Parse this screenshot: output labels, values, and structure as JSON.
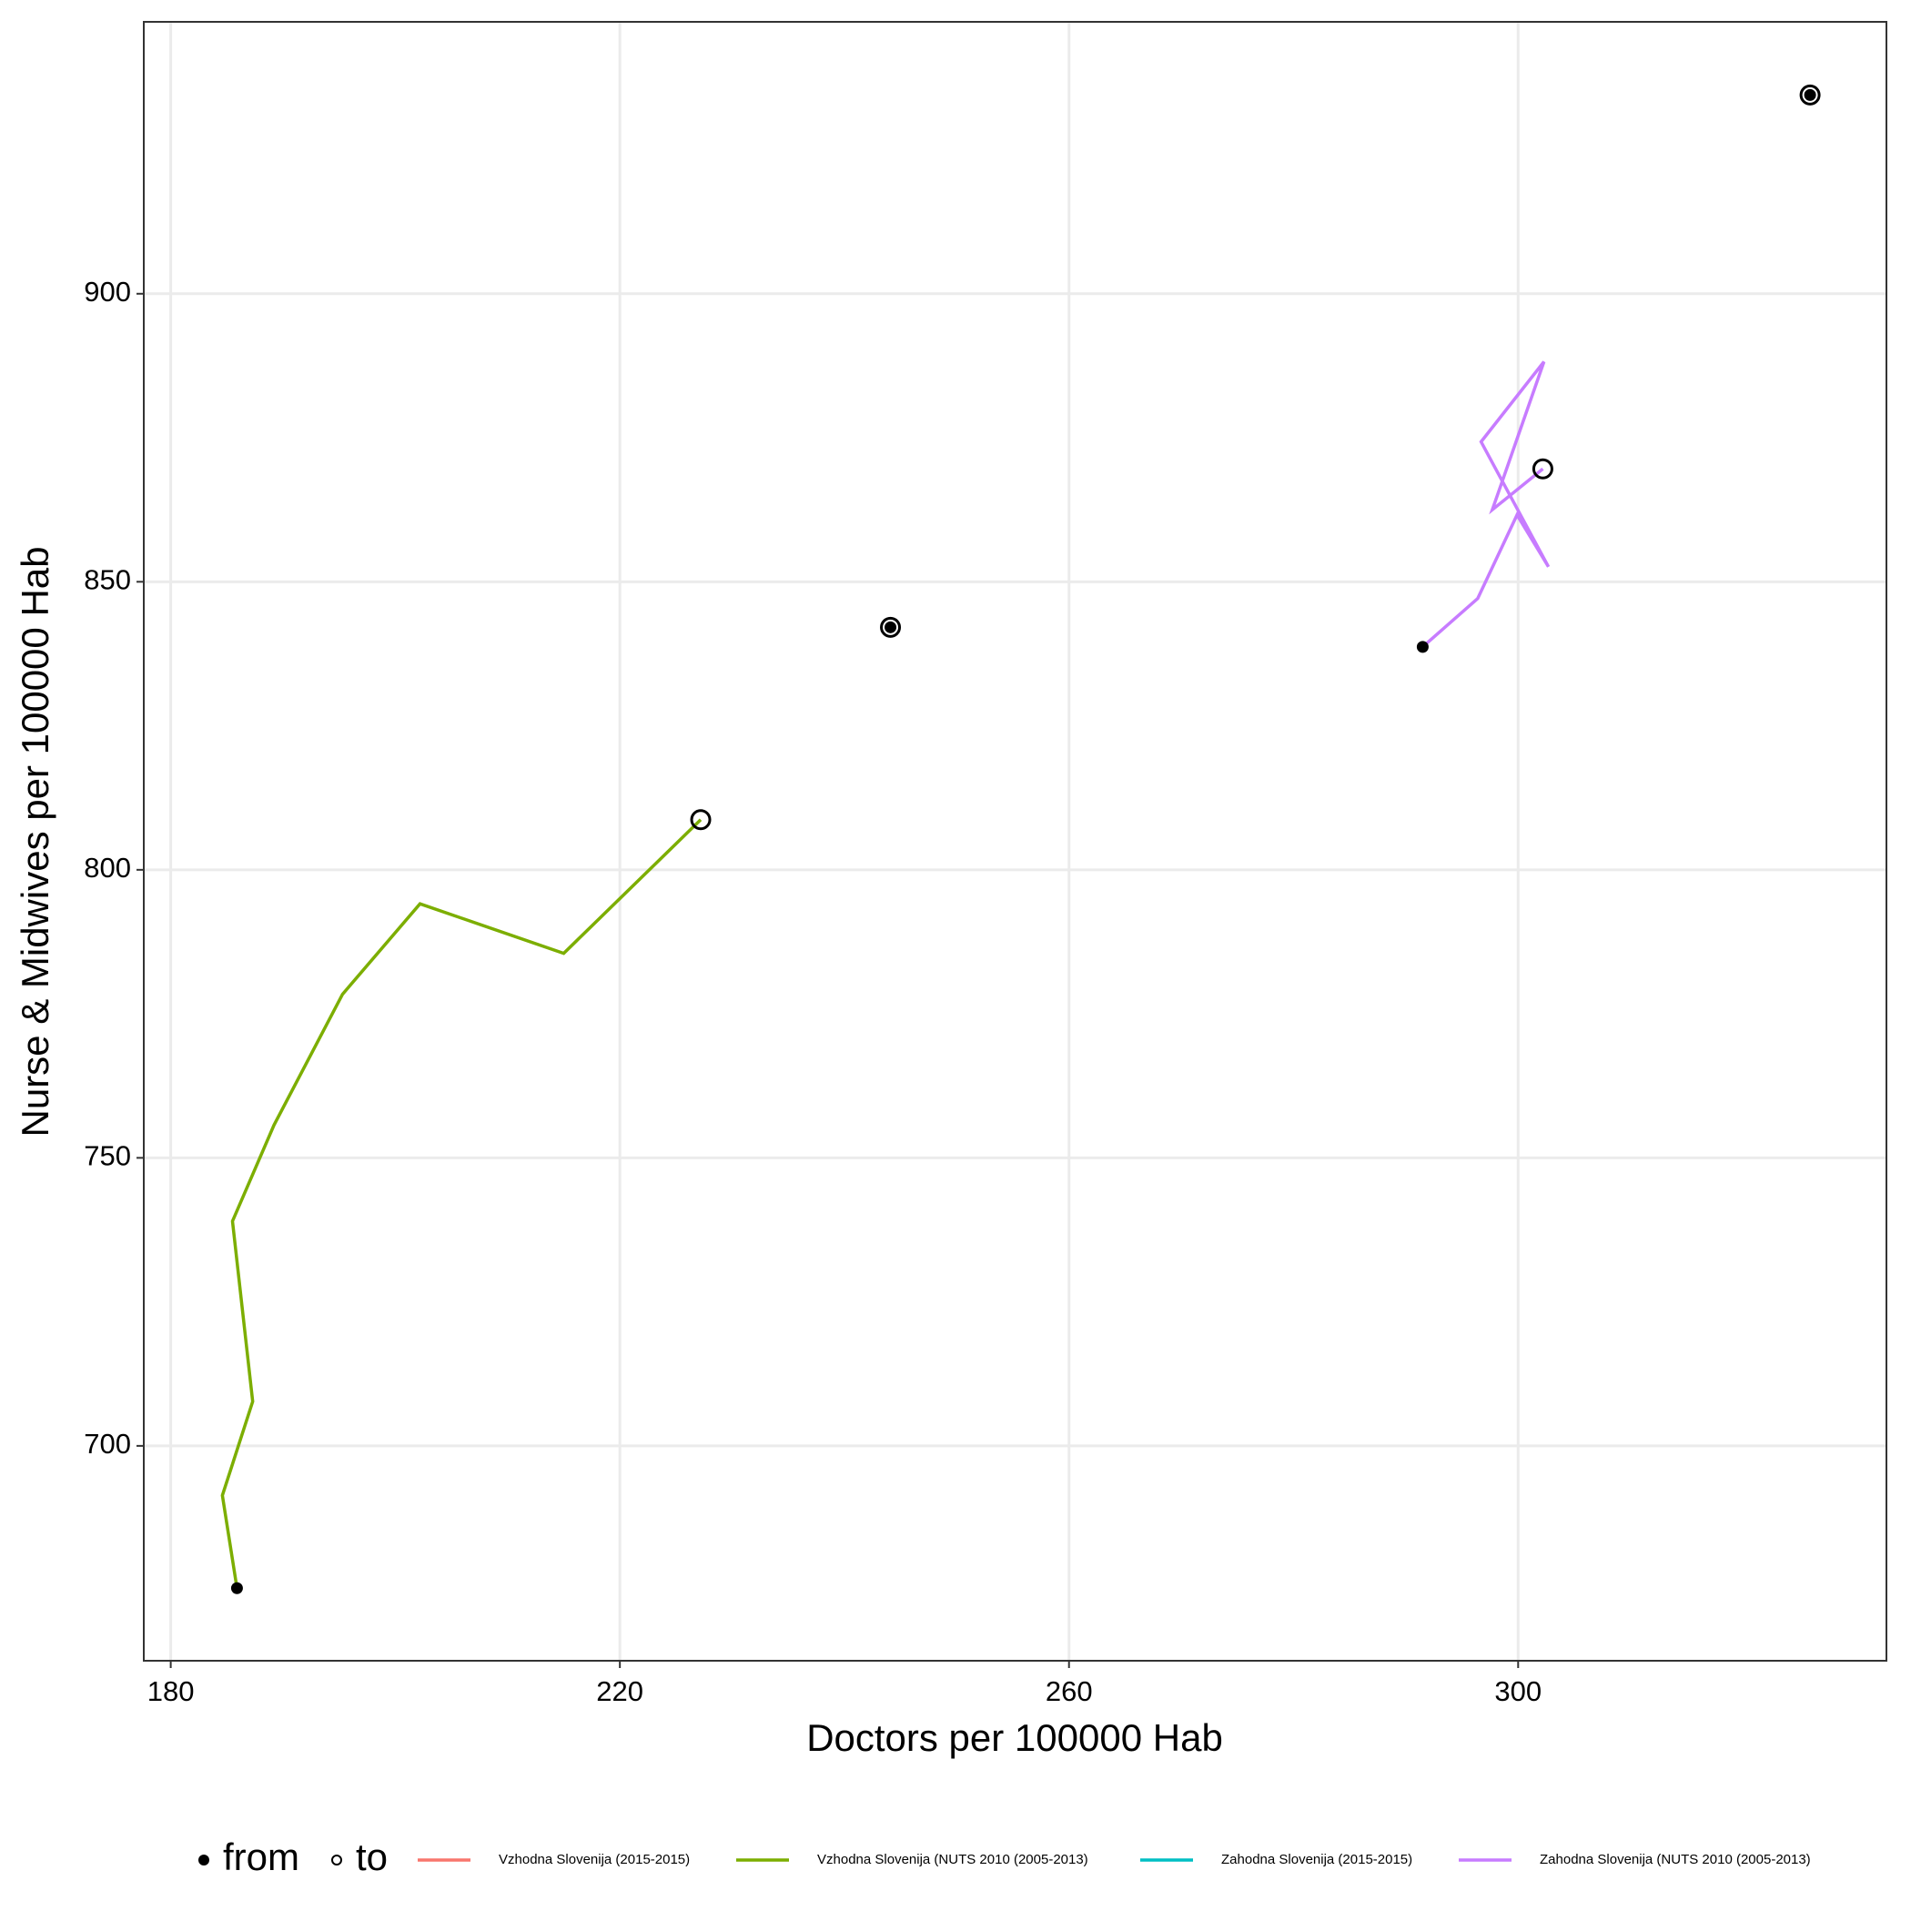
{
  "chart_data": {
    "type": "line",
    "xlabel": "Doctors  per 100000 Hab",
    "ylabel": "Nurse & Midwives per 100000 Hab",
    "xlim": [
      177.6,
      332.8
    ],
    "ylim": [
      662.7,
      947.2
    ],
    "xticks": [
      180,
      220,
      260,
      300
    ],
    "yticks": [
      700,
      750,
      800,
      850,
      900
    ],
    "grid": true,
    "legend_position": "bottom",
    "legend_markers": [
      "from",
      "to"
    ],
    "series": [
      {
        "name": "Vzhodna Slovenija (2015-2015)",
        "color": "#f8766d",
        "x": [
          244.1
        ],
        "values": [
          842.1
        ]
      },
      {
        "name": "Vzhodna Slovenija (NUTS 2010 (2005-2013)",
        "color": "#7cae00",
        "x": [
          185.9,
          184.6,
          187.3,
          185.5,
          189.2,
          195.3,
          202.2,
          215.0,
          227.2
        ],
        "values": [
          675.3,
          691.4,
          707.7,
          739.0,
          755.7,
          778.4,
          794.1,
          785.5,
          808.7
        ]
      },
      {
        "name": "Zahodna Slovenija (2015-2015)",
        "color": "#00bfc4",
        "x": [
          326.0
        ],
        "values": [
          934.5
        ]
      },
      {
        "name": "Zahodna Slovenija (NUTS 2010 (2005-2013)",
        "color": "#c77cff",
        "x": [
          291.5,
          296.4,
          299.9,
          302.7,
          296.7,
          302.3,
          297.7,
          302.2
        ],
        "values": [
          838.7,
          847.1,
          861.6,
          852.6,
          874.3,
          888.2,
          862.5,
          869.6
        ]
      }
    ]
  }
}
